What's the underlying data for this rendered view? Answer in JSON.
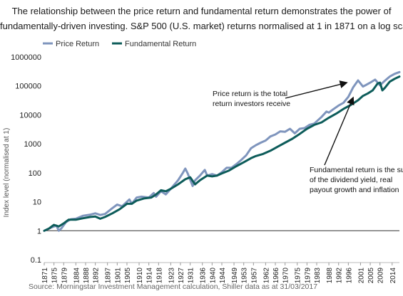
{
  "title_line1": "The relationship between the price return and fundamental return demonstrates the power of",
  "title_line2": "fundamentally-driven investing. S&P 500 (U.S. market) returns normalised at 1 in 1871 on a log scale",
  "source": "Source: Morningstar Investment Management calculation, Shiller data as at 31/03/2017",
  "chart_data": {
    "type": "line",
    "yscale": "log",
    "ylabel": "Index level (normalised at 1)",
    "ylim": [
      0.1,
      1000000
    ],
    "xlim": [
      1871,
      2017
    ],
    "yticks": [
      {
        "v": 0.1,
        "label": "0.1"
      },
      {
        "v": 1,
        "label": "1"
      },
      {
        "v": 10,
        "label": "10"
      },
      {
        "v": 100,
        "label": "100"
      },
      {
        "v": 1000,
        "label": "1000"
      },
      {
        "v": 10000,
        "label": "10000"
      },
      {
        "v": 100000,
        "label": "100000"
      },
      {
        "v": 1000000,
        "label": "1000000"
      }
    ],
    "xticks": [
      1871,
      1875,
      1879,
      1884,
      1888,
      1892,
      1897,
      1901,
      1905,
      1910,
      1914,
      1918,
      1923,
      1927,
      1931,
      1936,
      1940,
      1944,
      1949,
      1953,
      1957,
      1962,
      1966,
      1970,
      1975,
      1979,
      1983,
      1988,
      1992,
      1996,
      2001,
      2005,
      2009,
      2014
    ],
    "legend": [
      "Price Return",
      "Fundamental Return"
    ],
    "colors": {
      "price": "#7f95bd",
      "fundamental": "#0d5c5a"
    },
    "annotations": [
      {
        "lines": [
          "Price return is the total",
          "return investors receive"
        ],
        "arrow_to": {
          "x": 1996,
          "y": 145000
        }
      },
      {
        "lines": [
          "Fundamental return is the sum",
          "of the dividend yield, real",
          "payout growth and inflation"
        ],
        "arrow_to": {
          "x": 1998,
          "y": 50000
        }
      }
    ],
    "series": [
      {
        "name": "Price Return",
        "points": [
          [
            1871,
            1
          ],
          [
            1874,
            1.3
          ],
          [
            1876,
            1.5
          ],
          [
            1877,
            1.0
          ],
          [
            1878,
            1.2
          ],
          [
            1880,
            2.0
          ],
          [
            1882,
            2.5
          ],
          [
            1884,
            2.6
          ],
          [
            1887,
            3.3
          ],
          [
            1890,
            3.6
          ],
          [
            1892,
            4.0
          ],
          [
            1894,
            3.5
          ],
          [
            1896,
            3.8
          ],
          [
            1899,
            6.0
          ],
          [
            1901,
            8.0
          ],
          [
            1903,
            7.0
          ],
          [
            1906,
            12.0
          ],
          [
            1907,
            8.5
          ],
          [
            1909,
            14.0
          ],
          [
            1911,
            15.0
          ],
          [
            1914,
            14.0
          ],
          [
            1916,
            20.0
          ],
          [
            1917,
            15.0
          ],
          [
            1919,
            23.0
          ],
          [
            1921,
            18.0
          ],
          [
            1924,
            35.0
          ],
          [
            1926,
            55.0
          ],
          [
            1928,
            100.0
          ],
          [
            1929,
            140.0
          ],
          [
            1930,
            95.0
          ],
          [
            1932,
            35.0
          ],
          [
            1933,
            55.0
          ],
          [
            1935,
            80.0
          ],
          [
            1937,
            125.0
          ],
          [
            1938,
            80.0
          ],
          [
            1940,
            90.0
          ],
          [
            1942,
            80.0
          ],
          [
            1944,
            105.0
          ],
          [
            1946,
            150.0
          ],
          [
            1948,
            150.0
          ],
          [
            1950,
            200.0
          ],
          [
            1952,
            280.0
          ],
          [
            1954,
            400.0
          ],
          [
            1956,
            700.0
          ],
          [
            1958,
            900.0
          ],
          [
            1960,
            1100.0
          ],
          [
            1962,
            1300.0
          ],
          [
            1964,
            1800.0
          ],
          [
            1966,
            2100.0
          ],
          [
            1968,
            2700.0
          ],
          [
            1970,
            2600.0
          ],
          [
            1972,
            3300.0
          ],
          [
            1974,
            2300.0
          ],
          [
            1976,
            3300.0
          ],
          [
            1978,
            3500.0
          ],
          [
            1980,
            4500.0
          ],
          [
            1982,
            5000.0
          ],
          [
            1985,
            8500.0
          ],
          [
            1987,
            13000.0
          ],
          [
            1988,
            12000.0
          ],
          [
            1990,
            16000.0
          ],
          [
            1992,
            21000.0
          ],
          [
            1994,
            26000.0
          ],
          [
            1996,
            42000.0
          ],
          [
            1998,
            90000.0
          ],
          [
            2000,
            155000.0
          ],
          [
            2002,
            95000.0
          ],
          [
            2003,
            105000.0
          ],
          [
            2005,
            130000.0
          ],
          [
            2007,
            165000.0
          ],
          [
            2009,
            105000.0
          ],
          [
            2011,
            150000.0
          ],
          [
            2013,
            210000.0
          ],
          [
            2015,
            260000.0
          ],
          [
            2017,
            300000.0
          ]
        ]
      },
      {
        "name": "Fundamental Return",
        "points": [
          [
            1871,
            1
          ],
          [
            1873,
            1.2
          ],
          [
            1875,
            1.6
          ],
          [
            1877,
            1.4
          ],
          [
            1879,
            1.8
          ],
          [
            1881,
            2.4
          ],
          [
            1884,
            2.4
          ],
          [
            1887,
            2.7
          ],
          [
            1890,
            3.0
          ],
          [
            1892,
            3.1
          ],
          [
            1894,
            2.6
          ],
          [
            1896,
            3.0
          ],
          [
            1899,
            4.0
          ],
          [
            1902,
            5.5
          ],
          [
            1905,
            8.5
          ],
          [
            1907,
            8.5
          ],
          [
            1909,
            11.0
          ],
          [
            1912,
            13.0
          ],
          [
            1915,
            14.0
          ],
          [
            1917,
            18.0
          ],
          [
            1919,
            25.0
          ],
          [
            1921,
            23.0
          ],
          [
            1923,
            28.0
          ],
          [
            1926,
            40.0
          ],
          [
            1929,
            60.0
          ],
          [
            1931,
            70.0
          ],
          [
            1933,
            40.0
          ],
          [
            1935,
            55.0
          ],
          [
            1938,
            80.0
          ],
          [
            1940,
            75.0
          ],
          [
            1942,
            80.0
          ],
          [
            1944,
            95.0
          ],
          [
            1947,
            120.0
          ],
          [
            1950,
            170.0
          ],
          [
            1953,
            230.0
          ],
          [
            1956,
            320.0
          ],
          [
            1958,
            380.0
          ],
          [
            1961,
            450.0
          ],
          [
            1964,
            580.0
          ],
          [
            1967,
            800.0
          ],
          [
            1970,
            1100.0
          ],
          [
            1973,
            1500.0
          ],
          [
            1976,
            2200.0
          ],
          [
            1979,
            3300.0
          ],
          [
            1982,
            4500.0
          ],
          [
            1985,
            5500.0
          ],
          [
            1988,
            8000.0
          ],
          [
            1991,
            11000.0
          ],
          [
            1994,
            16000.0
          ],
          [
            1997,
            22000.0
          ],
          [
            2000,
            32000.0
          ],
          [
            2002,
            45000.0
          ],
          [
            2004,
            55000.0
          ],
          [
            2006,
            70000.0
          ],
          [
            2008,
            120000.0
          ],
          [
            2009,
            130000.0
          ],
          [
            2010,
            70000.0
          ],
          [
            2011,
            85000.0
          ],
          [
            2013,
            140000.0
          ],
          [
            2015,
            175000.0
          ],
          [
            2017,
            210000.0
          ]
        ]
      }
    ]
  }
}
